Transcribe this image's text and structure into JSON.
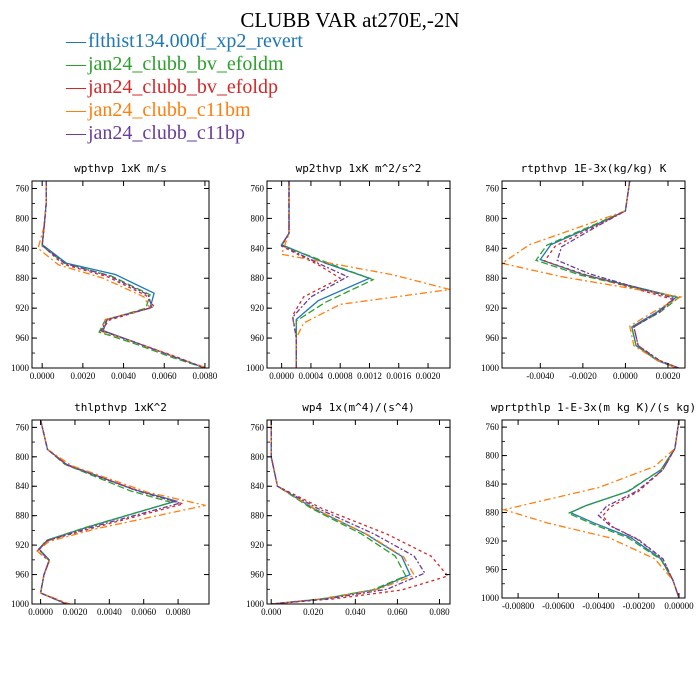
{
  "title": "CLUBB VAR at270E,-2N",
  "legend": [
    {
      "name": "flthist134.000f_xp2_revert",
      "color": "#1f77b4"
    },
    {
      "name": "jan24_clubb_bv_efoldm",
      "color": "#2ca02c"
    },
    {
      "name": "jan24_clubb_bv_efoldp",
      "color": "#d62728"
    },
    {
      "name": "jan24_clubb_c11bm",
      "color": "#ff7f0e"
    },
    {
      "name": "jan24_clubb_c11bp",
      "color": "#6a3d9a"
    }
  ],
  "chart_data": [
    {
      "type": "line",
      "title": "wpthvp  1xK m/s",
      "ylim": [
        1000,
        750
      ],
      "yticks": [
        "760",
        "800",
        "840",
        "880",
        "920",
        "960",
        "1000"
      ],
      "xlim": [
        -0.0005,
        0.0082
      ],
      "xticks": [
        "0.0000",
        "0.0020",
        "0.0040",
        "0.0060",
        "0.0080"
      ],
      "series": [
        {
          "color": "#1f77b4",
          "x": [
            0.0002,
            0.0002,
            0.0001,
            0.0,
            0.0012,
            0.0036,
            0.0055,
            0.0053,
            0.0032,
            0.003,
            0.0045,
            0.0065,
            0.008
          ],
          "y": [
            750,
            780,
            810,
            835,
            860,
            875,
            900,
            920,
            935,
            950,
            965,
            985,
            1000
          ]
        },
        {
          "color": "#2ca02c",
          "x": [
            0.0002,
            0.0002,
            0.0001,
            0.0,
            0.0011,
            0.0034,
            0.0053,
            0.0051,
            0.0031,
            0.0028,
            0.0044,
            0.0064,
            0.008
          ],
          "y": [
            750,
            780,
            810,
            837,
            860,
            877,
            902,
            920,
            936,
            952,
            966,
            986,
            1000
          ]
        },
        {
          "color": "#d62728",
          "x": [
            0.0002,
            0.0002,
            0.0001,
            0.0,
            0.001,
            0.0032,
            0.0051,
            0.0055,
            0.0033,
            0.0029,
            0.0045,
            0.0066,
            0.008
          ],
          "y": [
            750,
            780,
            810,
            836,
            861,
            878,
            903,
            918,
            936,
            950,
            965,
            985,
            1000
          ]
        },
        {
          "color": "#ff7f0e",
          "x": [
            0.0002,
            0.0002,
            0.0001,
            -0.0002,
            0.0008,
            0.003,
            0.005,
            0.0053,
            0.0031,
            0.0029,
            0.0046,
            0.0066,
            0.0081
          ],
          "y": [
            750,
            780,
            810,
            840,
            862,
            880,
            905,
            920,
            935,
            951,
            966,
            986,
            1000
          ]
        },
        {
          "color": "#6a3d9a",
          "x": [
            0.0002,
            0.0002,
            0.0001,
            0.0,
            0.0011,
            0.0033,
            0.0052,
            0.0054,
            0.0032,
            0.0029,
            0.0045,
            0.0065,
            0.008
          ],
          "y": [
            750,
            780,
            810,
            836,
            860,
            877,
            902,
            919,
            935,
            950,
            965,
            985,
            1000
          ]
        }
      ]
    },
    {
      "type": "line",
      "title": "wp2thvp  1xK m^2/s^2",
      "ylim": [
        1000,
        750
      ],
      "yticks": [
        "760",
        "800",
        "840",
        "880",
        "920",
        "960",
        "1000"
      ],
      "xlim": [
        -0.0002,
        0.0023
      ],
      "xticks": [
        "0.0000",
        "0.0004",
        "0.0008",
        "0.0012",
        "0.0016",
        "0.0020"
      ],
      "series": [
        {
          "color": "#1f77b4",
          "x": [
            0.0001,
            0.0001,
            0.0001,
            0.0,
            0.0006,
            0.0012,
            0.0005,
            0.0002,
            0.0002,
            0.0002
          ],
          "y": [
            750,
            790,
            820,
            835,
            860,
            880,
            910,
            935,
            960,
            1000
          ]
        },
        {
          "color": "#2ca02c",
          "x": [
            0.0001,
            0.0001,
            0.0001,
            0.0,
            0.0007,
            0.00125,
            0.0006,
            0.0002,
            0.0002,
            0.0002
          ],
          "y": [
            750,
            790,
            820,
            836,
            862,
            882,
            912,
            937,
            960,
            1000
          ]
        },
        {
          "color": "#d62728",
          "x": [
            0.0001,
            0.0001,
            0.0001,
            0.0,
            0.0005,
            0.0008,
            0.0003,
            0.00015,
            0.0002,
            0.0002
          ],
          "y": [
            750,
            790,
            820,
            837,
            862,
            880,
            905,
            930,
            960,
            1000
          ]
        },
        {
          "color": "#ff7f0e",
          "x": [
            0.0001,
            0.0001,
            0.0001,
            0.0,
            0.0015,
            0.0023,
            0.0008,
            0.0003,
            0.0002,
            0.0002
          ],
          "y": [
            750,
            790,
            820,
            848,
            875,
            895,
            915,
            940,
            960,
            1000
          ]
        },
        {
          "color": "#6a3d9a",
          "x": [
            0.0001,
            0.0001,
            0.0001,
            0.0,
            0.0005,
            0.0009,
            0.0004,
            0.00015,
            0.0002,
            0.0002
          ],
          "y": [
            750,
            790,
            820,
            836,
            860,
            878,
            905,
            932,
            960,
            1000
          ]
        }
      ]
    },
    {
      "type": "line",
      "title": "rtpthvp  1E-3x(kg/kg) K",
      "ylim": [
        1000,
        750
      ],
      "yticks": [
        "760",
        "800",
        "840",
        "880",
        "920",
        "960",
        "1000"
      ],
      "xlim": [
        -0.0058,
        0.0028
      ],
      "xticks": [
        "-0.0040",
        "-0.0020",
        "0.0000",
        "0.0020"
      ],
      "series": [
        {
          "color": "#1f77b4",
          "x": [
            0.0002,
            0.0,
            -0.0015,
            -0.0035,
            -0.004,
            -0.002,
            0.0024,
            0.0015,
            0.0003,
            0.0005,
            0.0015,
            0.0024
          ],
          "y": [
            750,
            790,
            810,
            835,
            855,
            875,
            905,
            925,
            945,
            970,
            990,
            1000
          ]
        },
        {
          "color": "#2ca02c",
          "x": [
            0.0002,
            0.0,
            -0.0016,
            -0.0037,
            -0.0042,
            -0.0021,
            0.0025,
            0.0016,
            0.0003,
            0.0005,
            0.0016,
            0.0025
          ],
          "y": [
            750,
            790,
            810,
            836,
            856,
            876,
            906,
            926,
            946,
            970,
            990,
            1000
          ]
        },
        {
          "color": "#d62728",
          "x": [
            0.0002,
            0.0,
            -0.0014,
            -0.0033,
            -0.0038,
            -0.0019,
            0.0022,
            0.0016,
            0.0004,
            0.0006,
            0.0016,
            0.0025
          ],
          "y": [
            750,
            790,
            810,
            837,
            857,
            875,
            908,
            925,
            945,
            970,
            990,
            1000
          ]
        },
        {
          "color": "#ff7f0e",
          "x": [
            0.0002,
            0.0,
            -0.002,
            -0.0045,
            -0.0058,
            -0.003,
            0.0026,
            0.0015,
            0.0002,
            0.0004,
            0.0015,
            0.0024
          ],
          "y": [
            750,
            790,
            810,
            835,
            860,
            878,
            905,
            922,
            944,
            970,
            990,
            1000
          ]
        },
        {
          "color": "#6a3d9a",
          "x": [
            0.0002,
            0.0,
            -0.0013,
            -0.003,
            -0.0032,
            -0.0017,
            0.0023,
            0.0016,
            0.0004,
            0.0006,
            0.0016,
            0.0025
          ],
          "y": [
            750,
            790,
            810,
            838,
            856,
            874,
            907,
            925,
            945,
            970,
            990,
            1000
          ]
        }
      ]
    },
    {
      "type": "line",
      "title": "thlpthvp  1xK^2",
      "ylim": [
        1000,
        750
      ],
      "yticks": [
        "760",
        "800",
        "840",
        "880",
        "920",
        "960",
        "1000"
      ],
      "xlim": [
        -0.0005,
        0.0098
      ],
      "xticks": [
        "0.0000",
        "0.0020",
        "0.0040",
        "0.0060",
        "0.0080"
      ],
      "series": [
        {
          "color": "#1f77b4",
          "x": [
            0.0,
            0.0004,
            0.0015,
            0.0055,
            0.0079,
            0.0028,
            0.0004,
            -0.0001,
            0.0005,
            0.0002,
            0.0,
            0.0015
          ],
          "y": [
            750,
            790,
            810,
            845,
            860,
            895,
            913,
            925,
            940,
            960,
            985,
            1000
          ]
        },
        {
          "color": "#2ca02c",
          "x": [
            0.0,
            0.0004,
            0.0014,
            0.0052,
            0.0076,
            0.0026,
            0.0003,
            -0.0001,
            0.0005,
            0.0002,
            0.0,
            0.0015
          ],
          "y": [
            750,
            790,
            810,
            846,
            862,
            896,
            914,
            926,
            941,
            960,
            985,
            1000
          ]
        },
        {
          "color": "#d62728",
          "x": [
            0.0,
            0.0004,
            0.0016,
            0.0058,
            0.0083,
            0.003,
            0.0004,
            -0.0002,
            0.0005,
            0.0002,
            0.0,
            0.0016
          ],
          "y": [
            750,
            790,
            812,
            847,
            864,
            897,
            914,
            928,
            942,
            960,
            985,
            1000
          ]
        },
        {
          "color": "#ff7f0e",
          "x": [
            0.0,
            0.0004,
            0.0018,
            0.0062,
            0.0096,
            0.0032,
            0.0005,
            -0.0002,
            0.0005,
            0.0002,
            0.0,
            0.0017
          ],
          "y": [
            750,
            790,
            812,
            848,
            866,
            898,
            915,
            928,
            942,
            960,
            985,
            1000
          ]
        },
        {
          "color": "#6a3d9a",
          "x": [
            0.0,
            0.0004,
            0.0015,
            0.0056,
            0.0081,
            0.0029,
            0.0004,
            -0.0001,
            0.0005,
            0.0002,
            0.0,
            0.0015
          ],
          "y": [
            750,
            790,
            811,
            846,
            863,
            896,
            914,
            926,
            941,
            960,
            985,
            1000
          ]
        }
      ]
    },
    {
      "type": "line",
      "title": "wp4  1x(m^4)/(s^4)",
      "ylim": [
        1000,
        750
      ],
      "yticks": [
        "760",
        "800",
        "840",
        "880",
        "920",
        "960",
        "1000"
      ],
      "xlim": [
        -0.002,
        0.085
      ],
      "xticks": [
        "0.000",
        "0.020",
        "0.040",
        "0.060",
        "0.080"
      ],
      "series": [
        {
          "color": "#1f77b4",
          "x": [
            0.0,
            0.0,
            0.003,
            0.02,
            0.045,
            0.062,
            0.066,
            0.05,
            0.025,
            0.0
          ],
          "y": [
            750,
            800,
            840,
            870,
            905,
            935,
            960,
            980,
            993,
            1000
          ]
        },
        {
          "color": "#2ca02c",
          "x": [
            0.0,
            0.0,
            0.003,
            0.019,
            0.043,
            0.059,
            0.064,
            0.048,
            0.024,
            0.0
          ],
          "y": [
            750,
            800,
            840,
            870,
            905,
            935,
            962,
            981,
            993,
            1000
          ]
        },
        {
          "color": "#d62728",
          "x": [
            0.0,
            0.0,
            0.003,
            0.024,
            0.055,
            0.076,
            0.084,
            0.062,
            0.03,
            0.0
          ],
          "y": [
            750,
            800,
            840,
            870,
            905,
            935,
            962,
            981,
            993,
            1000
          ]
        },
        {
          "color": "#ff7f0e",
          "x": [
            0.0,
            0.0,
            0.003,
            0.021,
            0.046,
            0.063,
            0.068,
            0.051,
            0.025,
            0.0
          ],
          "y": [
            750,
            800,
            840,
            871,
            906,
            936,
            961,
            980,
            993,
            1000
          ]
        },
        {
          "color": "#6a3d9a",
          "x": [
            0.0,
            0.0,
            0.003,
            0.022,
            0.049,
            0.068,
            0.073,
            0.055,
            0.027,
            0.0
          ],
          "y": [
            750,
            800,
            840,
            870,
            905,
            935,
            958,
            980,
            993,
            1000
          ]
        }
      ]
    },
    {
      "type": "line",
      "title": "wprtpthlp  1-E-3x(m kg K)/(s kg)",
      "ylim": [
        1000,
        750
      ],
      "yticks": [
        "760",
        "800",
        "840",
        "880",
        "920",
        "960",
        "1000"
      ],
      "xlim": [
        -0.0088,
        0.0003
      ],
      "xticks": [
        "-0.00800",
        "-0.00600",
        "-0.00400",
        "-0.00200",
        "0.00000"
      ],
      "series": [
        {
          "color": "#1f77b4",
          "x": [
            0.0,
            -0.0002,
            -0.0009,
            -0.0025,
            -0.0046,
            -0.0054,
            -0.0042,
            -0.0024,
            -0.0009,
            -0.0003,
            0.0
          ],
          "y": [
            750,
            790,
            820,
            850,
            870,
            880,
            895,
            915,
            945,
            975,
            1000
          ]
        },
        {
          "color": "#2ca02c",
          "x": [
            0.0,
            -0.0002,
            -0.0009,
            -0.0026,
            -0.0047,
            -0.0055,
            -0.0043,
            -0.0025,
            -0.0009,
            -0.0003,
            0.0
          ],
          "y": [
            750,
            790,
            820,
            851,
            871,
            881,
            896,
            916,
            946,
            975,
            1000
          ]
        },
        {
          "color": "#d62728",
          "x": [
            0.0,
            -0.0002,
            -0.0008,
            -0.002,
            -0.0034,
            -0.0038,
            -0.0033,
            -0.002,
            -0.0008,
            -0.0003,
            0.0
          ],
          "y": [
            750,
            790,
            820,
            850,
            872,
            885,
            900,
            918,
            945,
            975,
            1000
          ]
        },
        {
          "color": "#ff7f0e",
          "x": [
            0.0,
            -0.0002,
            -0.0012,
            -0.004,
            -0.0072,
            -0.0087,
            -0.0065,
            -0.0035,
            -0.0012,
            -0.0003,
            0.0
          ],
          "y": [
            750,
            790,
            815,
            845,
            866,
            876,
            895,
            915,
            945,
            975,
            1000
          ]
        },
        {
          "color": "#6a3d9a",
          "x": [
            0.0,
            -0.0002,
            -0.0008,
            -0.0021,
            -0.0036,
            -0.004,
            -0.0034,
            -0.0021,
            -0.0008,
            -0.0003,
            0.0
          ],
          "y": [
            750,
            790,
            820,
            850,
            871,
            884,
            899,
            917,
            945,
            975,
            1000
          ]
        }
      ]
    }
  ]
}
